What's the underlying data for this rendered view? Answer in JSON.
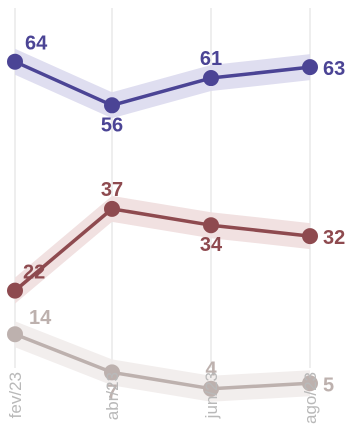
{
  "chart_data": {
    "type": "line",
    "categories": [
      "fev/23",
      "abr/23",
      "jun/23",
      "ago/23"
    ],
    "series": [
      {
        "values": [
          64,
          56,
          61,
          63
        ],
        "color": "#4b4495",
        "band": "#dcdaee"
      },
      {
        "values": [
          22,
          37,
          34,
          32
        ],
        "color": "#8e4a4f",
        "band": "#efdede"
      },
      {
        "values": [
          14,
          7,
          4,
          5
        ],
        "color": "#bdb1ae",
        "band": "#f1eceb"
      }
    ],
    "grid": "vertical",
    "gridColor": "#e8e8e8",
    "title": "",
    "xlabel": "",
    "ylabel": ""
  }
}
